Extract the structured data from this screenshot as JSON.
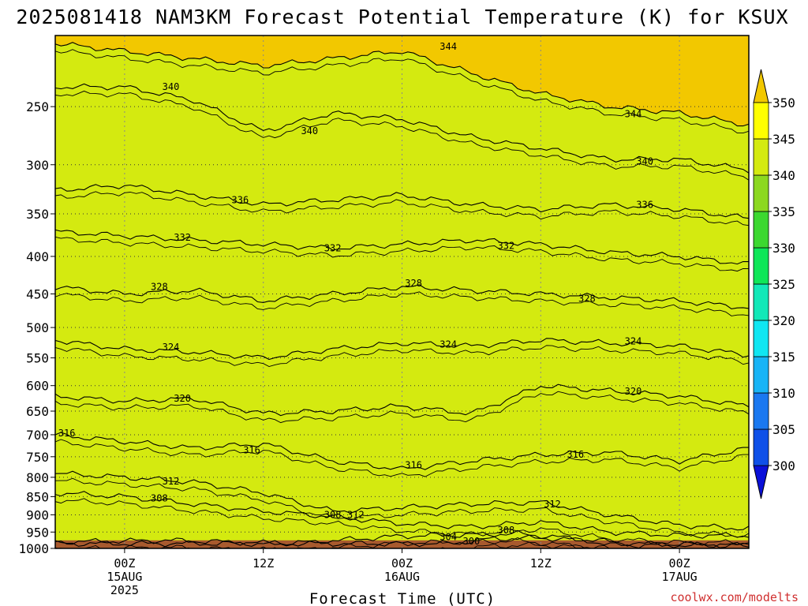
{
  "chart_data": {
    "type": "heatmap",
    "title": "2025081418 NAM3KM Forecast Potential Temperature (K) for KSUX",
    "xlabel": "Forecast Time (UTC)",
    "ylabel": "",
    "credit": "coolwx.com/modelts",
    "y_axis": {
      "quantity": "pressure (hPa)",
      "scale": "log",
      "inverted": true,
      "range": [
        1000,
        200
      ],
      "ticks": [
        250,
        300,
        350,
        400,
        450,
        500,
        550,
        600,
        650,
        700,
        750,
        800,
        850,
        900,
        950,
        1000
      ]
    },
    "x_axis": {
      "ticks": [
        {
          "hour": 6,
          "line1": "00Z",
          "line2": "15AUG",
          "line3": "2025"
        },
        {
          "hour": 18,
          "line1": "12Z",
          "line2": "",
          "line3": ""
        },
        {
          "hour": 30,
          "line1": "00Z",
          "line2": "16AUG",
          "line3": ""
        },
        {
          "hour": 42,
          "line1": "12Z",
          "line2": "",
          "line3": ""
        },
        {
          "hour": 54,
          "line1": "00Z",
          "line2": "17AUG",
          "line3": ""
        }
      ],
      "range": [
        0,
        60
      ]
    },
    "grid": true,
    "colorbar": {
      "placement": "right",
      "levels": [
        300,
        305,
        310,
        315,
        320,
        325,
        330,
        335,
        340,
        345,
        350
      ],
      "colors": [
        "#0a10d8",
        "#0f50e8",
        "#1a78f0",
        "#18b4f6",
        "#10e6f2",
        "#12e8b8",
        "#0ee658",
        "#3cd830",
        "#8cd820",
        "#d4ea10",
        "#ffff00",
        "#f2c800"
      ]
    },
    "ground_color": "#a85a2e",
    "isotherm_colors": {
      "label": "#000000"
    },
    "isentropes": [
      {
        "level": 300,
        "profile": [
          {
            "hour": 34,
            "p": 985
          },
          {
            "hour": 38,
            "p": 970
          },
          {
            "hour": 42,
            "p": 968
          },
          {
            "hour": 46,
            "p": 975
          },
          {
            "hour": 48,
            "p": 990
          }
        ]
      },
      {
        "level": 304,
        "profile": [
          {
            "hour": 0,
            "p": 980
          },
          {
            "hour": 10,
            "p": 975
          },
          {
            "hour": 20,
            "p": 985
          },
          {
            "hour": 30,
            "p": 962
          },
          {
            "hour": 40,
            "p": 955
          },
          {
            "hour": 50,
            "p": 985
          },
          {
            "hour": 60,
            "p": 990
          }
        ]
      },
      {
        "level": 308,
        "profile": [
          {
            "hour": 0,
            "p": 840
          },
          {
            "hour": 6,
            "p": 850
          },
          {
            "hour": 12,
            "p": 870
          },
          {
            "hour": 18,
            "p": 890
          },
          {
            "hour": 24,
            "p": 905
          },
          {
            "hour": 30,
            "p": 925
          },
          {
            "hour": 36,
            "p": 935
          },
          {
            "hour": 42,
            "p": 920
          },
          {
            "hour": 48,
            "p": 950
          },
          {
            "hour": 54,
            "p": 960
          },
          {
            "hour": 60,
            "p": 960
          }
        ]
      },
      {
        "level": 312,
        "profile": [
          {
            "hour": 0,
            "p": 790
          },
          {
            "hour": 6,
            "p": 800
          },
          {
            "hour": 12,
            "p": 812
          },
          {
            "hour": 18,
            "p": 840
          },
          {
            "hour": 24,
            "p": 890
          },
          {
            "hour": 30,
            "p": 880
          },
          {
            "hour": 36,
            "p": 870
          },
          {
            "hour": 42,
            "p": 865
          },
          {
            "hour": 48,
            "p": 900
          },
          {
            "hour": 54,
            "p": 930
          },
          {
            "hour": 60,
            "p": 940
          }
        ]
      },
      {
        "level": 316,
        "profile": [
          {
            "hour": 0,
            "p": 700
          },
          {
            "hour": 6,
            "p": 715
          },
          {
            "hour": 12,
            "p": 730
          },
          {
            "hour": 18,
            "p": 720
          },
          {
            "hour": 24,
            "p": 760
          },
          {
            "hour": 30,
            "p": 780
          },
          {
            "hour": 36,
            "p": 760
          },
          {
            "hour": 42,
            "p": 745
          },
          {
            "hour": 48,
            "p": 740
          },
          {
            "hour": 54,
            "p": 760
          },
          {
            "hour": 60,
            "p": 730
          }
        ]
      },
      {
        "level": 320,
        "profile": [
          {
            "hour": 0,
            "p": 620
          },
          {
            "hour": 6,
            "p": 630
          },
          {
            "hour": 12,
            "p": 625
          },
          {
            "hour": 18,
            "p": 655
          },
          {
            "hour": 24,
            "p": 650
          },
          {
            "hour": 30,
            "p": 640
          },
          {
            "hour": 36,
            "p": 655
          },
          {
            "hour": 42,
            "p": 600
          },
          {
            "hour": 48,
            "p": 610
          },
          {
            "hour": 54,
            "p": 620
          },
          {
            "hour": 60,
            "p": 640
          }
        ]
      },
      {
        "level": 324,
        "profile": [
          {
            "hour": 0,
            "p": 520
          },
          {
            "hour": 6,
            "p": 535
          },
          {
            "hour": 12,
            "p": 540
          },
          {
            "hour": 18,
            "p": 550
          },
          {
            "hour": 24,
            "p": 535
          },
          {
            "hour": 30,
            "p": 525
          },
          {
            "hour": 36,
            "p": 530
          },
          {
            "hour": 42,
            "p": 520
          },
          {
            "hour": 48,
            "p": 525
          },
          {
            "hour": 54,
            "p": 530
          },
          {
            "hour": 60,
            "p": 545
          }
        ]
      },
      {
        "level": 328,
        "profile": [
          {
            "hour": 0,
            "p": 440
          },
          {
            "hour": 6,
            "p": 450
          },
          {
            "hour": 12,
            "p": 445
          },
          {
            "hour": 18,
            "p": 460
          },
          {
            "hour": 24,
            "p": 450
          },
          {
            "hour": 30,
            "p": 440
          },
          {
            "hour": 36,
            "p": 445
          },
          {
            "hour": 42,
            "p": 450
          },
          {
            "hour": 48,
            "p": 455
          },
          {
            "hour": 54,
            "p": 460
          },
          {
            "hour": 60,
            "p": 470
          }
        ]
      },
      {
        "level": 332,
        "profile": [
          {
            "hour": 0,
            "p": 370
          },
          {
            "hour": 6,
            "p": 375
          },
          {
            "hour": 12,
            "p": 380
          },
          {
            "hour": 18,
            "p": 385
          },
          {
            "hour": 24,
            "p": 390
          },
          {
            "hour": 30,
            "p": 385
          },
          {
            "hour": 36,
            "p": 380
          },
          {
            "hour": 42,
            "p": 385
          },
          {
            "hour": 48,
            "p": 395
          },
          {
            "hour": 54,
            "p": 400
          },
          {
            "hour": 60,
            "p": 410
          }
        ]
      },
      {
        "level": 336,
        "profile": [
          {
            "hour": 0,
            "p": 325
          },
          {
            "hour": 6,
            "p": 320
          },
          {
            "hour": 12,
            "p": 330
          },
          {
            "hour": 18,
            "p": 340
          },
          {
            "hour": 24,
            "p": 335
          },
          {
            "hour": 30,
            "p": 330
          },
          {
            "hour": 36,
            "p": 340
          },
          {
            "hour": 42,
            "p": 345
          },
          {
            "hour": 48,
            "p": 340
          },
          {
            "hour": 54,
            "p": 345
          },
          {
            "hour": 60,
            "p": 355
          }
        ]
      },
      {
        "level": 340,
        "profile": [
          {
            "hour": 0,
            "p": 235
          },
          {
            "hour": 6,
            "p": 235
          },
          {
            "hour": 12,
            "p": 245
          },
          {
            "hour": 18,
            "p": 270
          },
          {
            "hour": 24,
            "p": 255
          },
          {
            "hour": 30,
            "p": 260
          },
          {
            "hour": 36,
            "p": 275
          },
          {
            "hour": 42,
            "p": 285
          },
          {
            "hour": 48,
            "p": 295
          },
          {
            "hour": 54,
            "p": 295
          },
          {
            "hour": 60,
            "p": 305
          }
        ]
      },
      {
        "level": 344,
        "profile": [
          {
            "hour": 0,
            "p": 205
          },
          {
            "hour": 6,
            "p": 210
          },
          {
            "hour": 12,
            "p": 215
          },
          {
            "hour": 18,
            "p": 220
          },
          {
            "hour": 24,
            "p": 215
          },
          {
            "hour": 30,
            "p": 210
          },
          {
            "hour": 36,
            "p": 225
          },
          {
            "hour": 42,
            "p": 240
          },
          {
            "hour": 48,
            "p": 250
          },
          {
            "hour": 54,
            "p": 255
          },
          {
            "hour": 60,
            "p": 265
          }
        ]
      }
    ],
    "contour_labels": [
      {
        "text": "344",
        "hour": 34,
        "p": 207
      },
      {
        "text": "340",
        "hour": 10,
        "p": 235
      },
      {
        "text": "340",
        "hour": 22,
        "p": 270
      },
      {
        "text": "344",
        "hour": 50,
        "p": 256
      },
      {
        "text": "340",
        "hour": 51,
        "p": 297
      },
      {
        "text": "336",
        "hour": 16,
        "p": 335
      },
      {
        "text": "336",
        "hour": 51,
        "p": 340
      },
      {
        "text": "332",
        "hour": 11,
        "p": 377
      },
      {
        "text": "332",
        "hour": 24,
        "p": 390
      },
      {
        "text": "332",
        "hour": 39,
        "p": 387
      },
      {
        "text": "328",
        "hour": 9,
        "p": 440
      },
      {
        "text": "328",
        "hour": 31,
        "p": 435
      },
      {
        "text": "328",
        "hour": 46,
        "p": 457
      },
      {
        "text": "324",
        "hour": 10,
        "p": 532
      },
      {
        "text": "324",
        "hour": 34,
        "p": 527
      },
      {
        "text": "324",
        "hour": 50,
        "p": 522
      },
      {
        "text": "320",
        "hour": 11,
        "p": 625
      },
      {
        "text": "320",
        "hour": 50,
        "p": 611
      },
      {
        "text": "316",
        "hour": 1,
        "p": 697
      },
      {
        "text": "316",
        "hour": 17,
        "p": 735
      },
      {
        "text": "316",
        "hour": 31,
        "p": 770
      },
      {
        "text": "316",
        "hour": 45,
        "p": 745
      },
      {
        "text": "312",
        "hour": 10,
        "p": 810
      },
      {
        "text": "312",
        "hour": 26,
        "p": 900
      },
      {
        "text": "312",
        "hour": 43,
        "p": 870
      },
      {
        "text": "308",
        "hour": 9,
        "p": 855
      },
      {
        "text": "308",
        "hour": 24,
        "p": 900
      },
      {
        "text": "308",
        "hour": 39,
        "p": 945
      },
      {
        "text": "304",
        "hour": 34,
        "p": 965
      },
      {
        "text": "300",
        "hour": 36,
        "p": 978
      }
    ]
  }
}
